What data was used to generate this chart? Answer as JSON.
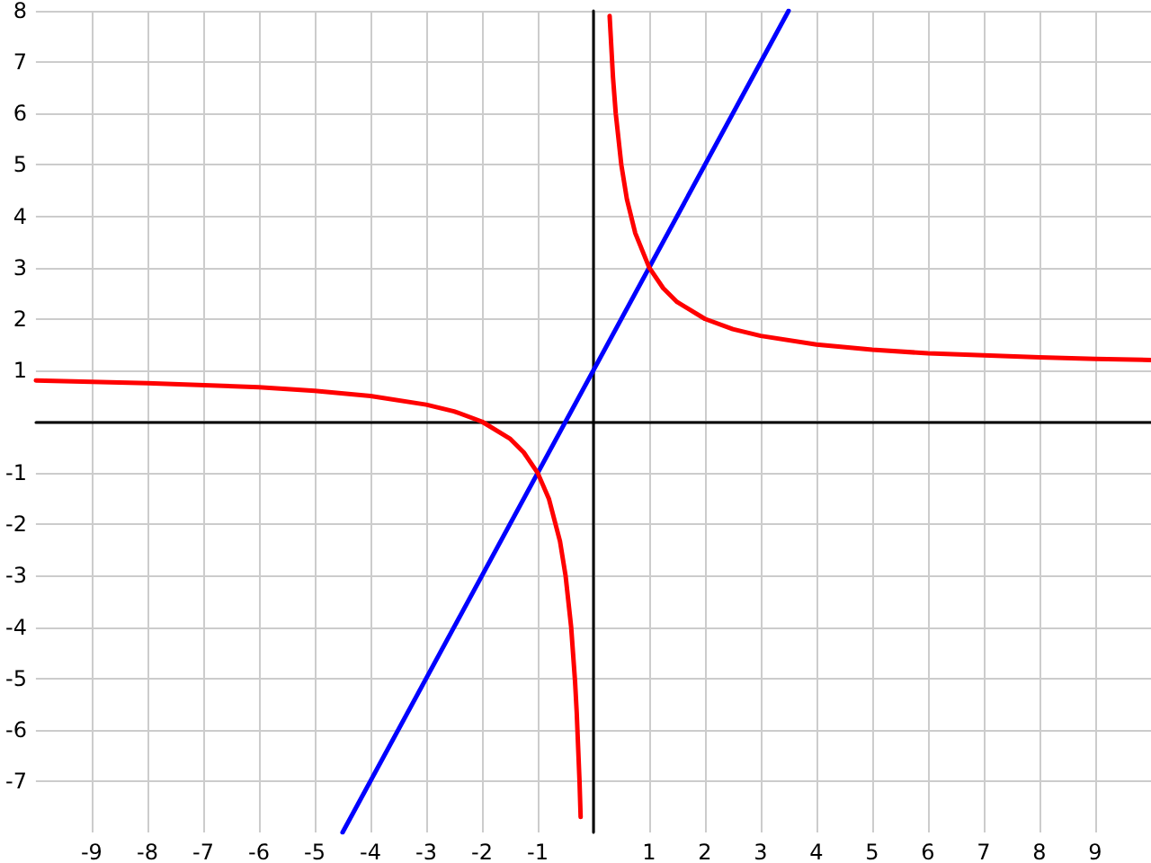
{
  "chart_data": {
    "type": "line",
    "xlim": [
      -10,
      10
    ],
    "ylim": [
      -8,
      8
    ],
    "xticks": [
      -9,
      -8,
      -7,
      -6,
      -5,
      -4,
      -3,
      -2,
      -1,
      {
        "value": 0,
        "label": null
      },
      1,
      2,
      3,
      4,
      5,
      6,
      7,
      8,
      9
    ],
    "yticks": [
      -7,
      -6,
      -5,
      -4,
      -3,
      -2,
      -1,
      {
        "value": 0,
        "label": null
      },
      1,
      2,
      3,
      4,
      5,
      6,
      7,
      8
    ],
    "grid": true,
    "marker": "none",
    "line_style": "solid",
    "series": [
      {
        "color": "#0000ff",
        "x": [
          -4.5,
          3.5
        ],
        "values": [
          -8,
          8
        ]
      },
      {
        "color": "#ff0000",
        "x": [
          -10,
          -8,
          -6,
          -5,
          -4,
          -3,
          -2.5,
          -2,
          -1.5,
          -1.25,
          -1,
          -0.8,
          -0.6,
          -0.5,
          -0.4,
          -0.33,
          -0.3,
          -0.25,
          -0.23
        ],
        "values": [
          0.8,
          0.75,
          0.67,
          0.6,
          0.5,
          0.33,
          0.2,
          0,
          -0.33,
          -0.6,
          -1,
          -1.5,
          -2.33,
          -3,
          -4,
          -5.06,
          -5.67,
          -7,
          -7.7
        ]
      },
      {
        "color": "#ff0000",
        "x": [
          0.29,
          0.35,
          0.4,
          0.5,
          0.6,
          0.75,
          1,
          1.25,
          1.5,
          2,
          2.5,
          3,
          4,
          5,
          6,
          7,
          8,
          9,
          10
        ],
        "values": [
          7.9,
          6.71,
          6,
          5,
          4.33,
          3.67,
          3,
          2.6,
          2.33,
          2,
          1.8,
          1.67,
          1.5,
          1.4,
          1.33,
          1.29,
          1.25,
          1.22,
          1.2
        ]
      }
    ]
  }
}
